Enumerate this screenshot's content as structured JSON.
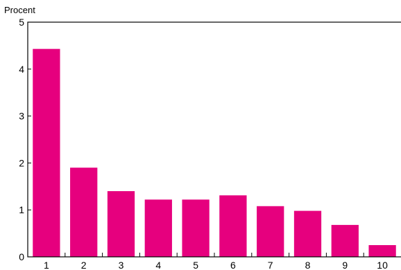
{
  "chart_data": {
    "type": "bar",
    "title": "",
    "ylabel": "Procent",
    "xlabel": "",
    "categories": [
      "1",
      "2",
      "3",
      "4",
      "5",
      "6",
      "7",
      "8",
      "9",
      "10"
    ],
    "values": [
      4.43,
      1.9,
      1.4,
      1.22,
      1.22,
      1.31,
      1.08,
      0.98,
      0.68,
      0.25
    ],
    "ylim": [
      0,
      5
    ],
    "yticks": [
      0,
      1,
      2,
      3,
      4,
      5
    ],
    "bar_color": "#e6007e",
    "grid": false,
    "legend": "none"
  }
}
